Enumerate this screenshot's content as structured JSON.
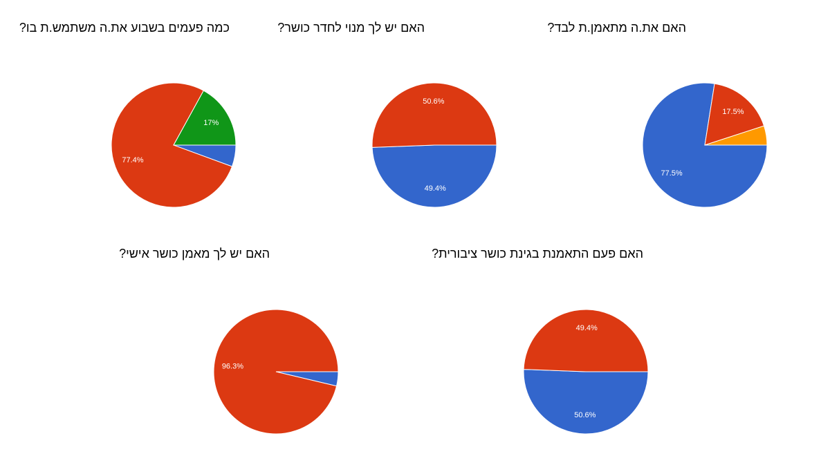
{
  "chart_data": [
    {
      "type": "pie",
      "title": "כמה פעמים בשבוע את.ה משתמש.ת בו?",
      "values": [
        5.6,
        77.4,
        17
      ],
      "value_labels": [
        null,
        "77.4%",
        "17%"
      ],
      "colors": [
        "#3366cc",
        "#dc3912",
        "#109618"
      ]
    },
    {
      "type": "pie",
      "title": "האם יש לך מנוי לחדר כושר?",
      "values": [
        49.4,
        50.6
      ],
      "value_labels": [
        "49.4%",
        "50.6%"
      ],
      "colors": [
        "#3366cc",
        "#dc3912"
      ]
    },
    {
      "type": "pie",
      "title": "האם את.ה מתאמן.ת לבד?",
      "values": [
        77.5,
        17.5,
        5
      ],
      "value_labels": [
        "77.5%",
        "17.5%",
        null
      ],
      "colors": [
        "#3366cc",
        "#dc3912",
        "#ff9900"
      ]
    },
    {
      "type": "pie",
      "title": "האם יש לך מאמן כושר אישי?",
      "values": [
        3.7,
        96.3
      ],
      "value_labels": [
        null,
        "96.3%"
      ],
      "colors": [
        "#3366cc",
        "#dc3912"
      ]
    },
    {
      "type": "pie",
      "title": "האם פעם התאמנת בגינת כושר ציבורית?",
      "values": [
        50.6,
        49.4
      ],
      "value_labels": [
        "50.6%",
        "49.4%"
      ],
      "colors": [
        "#3366cc",
        "#dc3912"
      ]
    }
  ]
}
